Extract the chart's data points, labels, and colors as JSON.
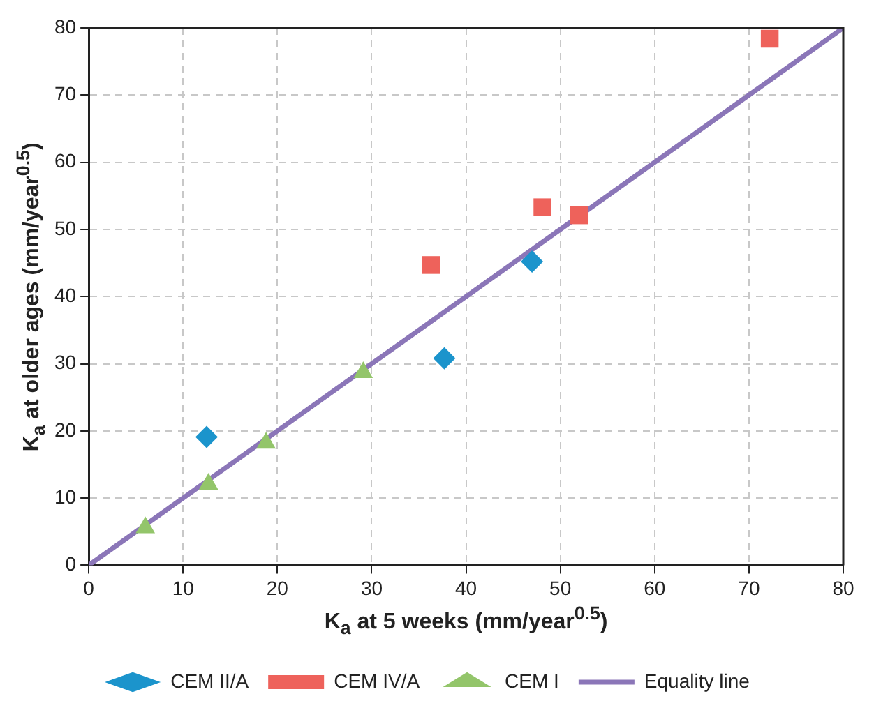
{
  "chart_data": {
    "type": "scatter",
    "xlabel": "K$_{a}$ at 5 weeks (mm/year$^{0.5}$)",
    "ylabel": "K$_{a}$ at older ages (mm/year$^{0.5}$)",
    "xlim": [
      0,
      80
    ],
    "xticks": [
      0,
      10,
      20,
      30,
      40,
      50,
      60,
      70,
      80
    ],
    "ylim": [
      0,
      80
    ],
    "yticks": [
      0,
      10,
      20,
      30,
      40,
      50,
      60,
      70,
      80
    ],
    "grid": true,
    "legend": "bottom",
    "series": [
      {
        "name": "CEM II/A",
        "color": "#1b94cc",
        "marker": "diamond",
        "x": [
          12.5,
          37.7,
          47.0
        ],
        "values": [
          19.1,
          30.8,
          45.2
        ]
      },
      {
        "name": "CEM IV/A",
        "color": "#ee625b",
        "marker": "square",
        "x": [
          36.3,
          48.1,
          52.0,
          72.2
        ],
        "values": [
          44.7,
          53.3,
          52.1,
          78.4
        ]
      },
      {
        "name": "CEM I",
        "color": "#93c56a",
        "marker": "triangle",
        "x": [
          6.0,
          12.7,
          18.8,
          29.1
        ],
        "values": [
          5.6,
          12.1,
          18.2,
          28.7
        ]
      },
      {
        "name": "Equality line",
        "type": "line",
        "color": "#8b76b8",
        "line_style": "solid",
        "marker": "none",
        "x": [
          0,
          80
        ],
        "values": [
          0,
          80
        ]
      }
    ]
  }
}
